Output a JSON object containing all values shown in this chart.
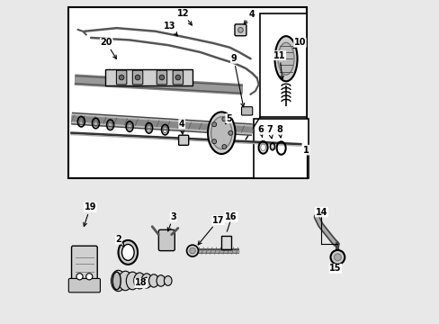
{
  "bg_color": "#e8e8e8",
  "white": "#ffffff",
  "black": "#000000",
  "gray": "#888888",
  "light_gray": "#cccccc",
  "figsize": [
    4.89,
    3.6
  ],
  "dpi": 100,
  "label_fontsize": 7
}
